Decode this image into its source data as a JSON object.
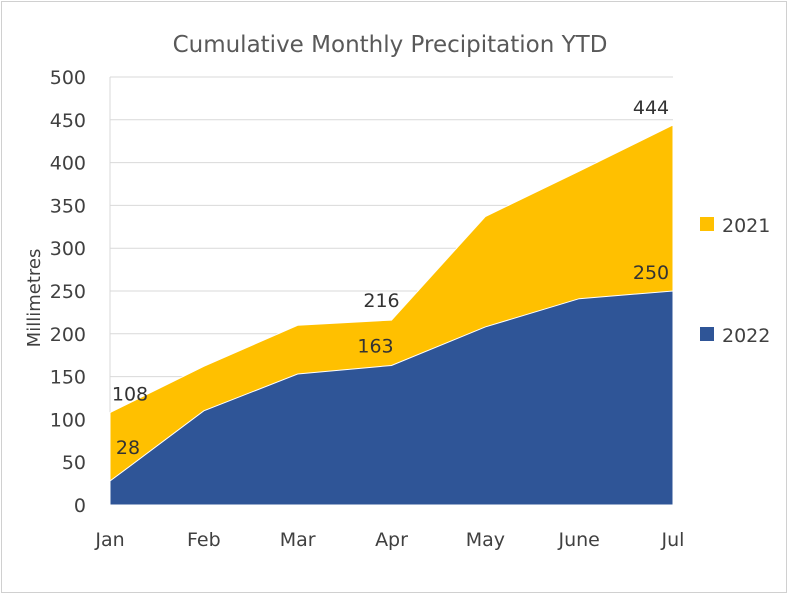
{
  "chart_data": {
    "type": "area",
    "title": "Cumulative Monthly Precipitation YTD",
    "xlabel": "",
    "ylabel": "Millimetres",
    "categories": [
      "Jan",
      "Feb",
      "Mar",
      "Apr",
      "May",
      "June",
      "Jul"
    ],
    "ylim": [
      0,
      500
    ],
    "yticks": [
      0,
      50,
      100,
      150,
      200,
      250,
      300,
      350,
      400,
      450,
      500
    ],
    "grid": true,
    "legend_position": "right",
    "series": [
      {
        "name": "2021",
        "color": "#FFC000",
        "values": [
          108,
          162,
          210,
          216,
          337,
          390,
          444
        ],
        "labels": {
          "0": "108",
          "3": "216",
          "6": "444"
        }
      },
      {
        "name": "2022",
        "color": "#2F5597",
        "values": [
          28,
          110,
          153,
          163,
          208,
          241,
          250
        ],
        "labels": {
          "0": "28",
          "3": "163",
          "6": "250"
        }
      }
    ]
  }
}
